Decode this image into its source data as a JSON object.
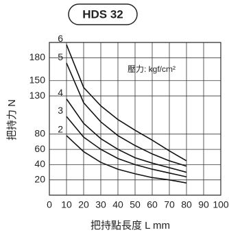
{
  "chart_data": {
    "type": "line",
    "title": "HDS 32",
    "x_label": "把持點長度 L mm",
    "y_label": "把持力 N",
    "annotation": "壓力: kgf/cm²",
    "x": [
      10,
      20,
      30,
      40,
      50,
      60,
      70,
      80
    ],
    "series": [
      {
        "name": "6",
        "color": "#111111",
        "values": [
          197,
          141,
          117,
          99,
          85,
          72,
          58,
          45
        ]
      },
      {
        "name": "5",
        "color": "#111111",
        "values": [
          173,
          121,
          96,
          78,
          65,
          54,
          45,
          38
        ]
      },
      {
        "name": "4",
        "color": "#111111",
        "values": [
          126,
          94,
          74,
          60,
          49,
          42,
          36,
          30
        ]
      },
      {
        "name": "3",
        "color": "#111111",
        "values": [
          103,
          76,
          60,
          48,
          40,
          34,
          29,
          24
        ]
      },
      {
        "name": "2",
        "color": "#111111",
        "values": [
          78,
          57,
          43,
          34,
          28,
          23,
          20,
          16
        ]
      }
    ],
    "xlim": [
      0,
      100
    ],
    "xticks": [
      0,
      10,
      20,
      30,
      40,
      50,
      60,
      70,
      80,
      90,
      100
    ],
    "ylim": [
      0,
      200
    ],
    "yticks": [
      20,
      40,
      60,
      80,
      130,
      150,
      180
    ],
    "grid": true
  }
}
